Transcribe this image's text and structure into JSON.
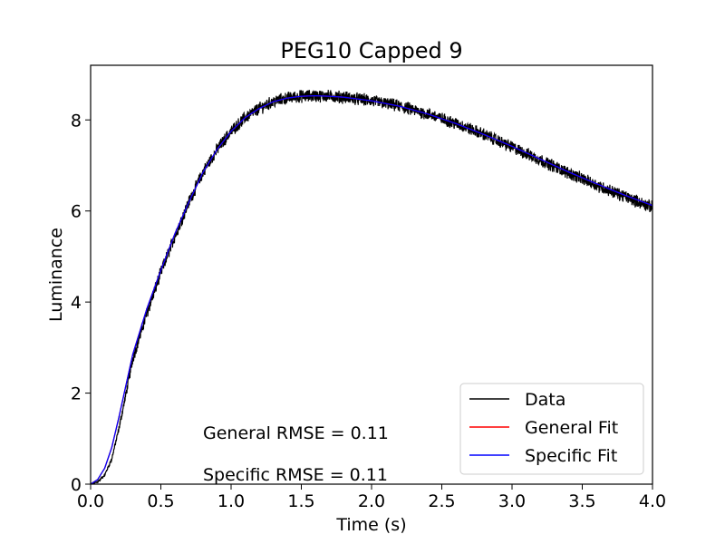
{
  "chart_data": {
    "type": "line",
    "title": "PEG10 Capped 9",
    "xlabel": "Time (s)",
    "ylabel": "Luminance",
    "xlim": [
      0.0,
      4.0
    ],
    "ylim": [
      0.0,
      9.2
    ],
    "xticks": [
      0.0,
      0.5,
      1.0,
      1.5,
      2.0,
      2.5,
      3.0,
      3.5,
      4.0
    ],
    "xtick_labels": [
      "0.0",
      "0.5",
      "1.0",
      "1.5",
      "2.0",
      "2.5",
      "3.0",
      "3.5",
      "4.0"
    ],
    "yticks": [
      0,
      2,
      4,
      6,
      8
    ],
    "ytick_labels": [
      "0",
      "2",
      "4",
      "6",
      "8"
    ],
    "grid": false,
    "legend_position": "bottom-right",
    "series": [
      {
        "name": "Data",
        "color": "#000000",
        "noise_amplitude": 0.12,
        "x": [
          0.0,
          0.05,
          0.1,
          0.15,
          0.2,
          0.25,
          0.3,
          0.4,
          0.5,
          0.6,
          0.7,
          0.8,
          0.9,
          1.0,
          1.1,
          1.2,
          1.3,
          1.4,
          1.5,
          1.6,
          1.7,
          1.8,
          1.9,
          2.0,
          2.2,
          2.4,
          2.6,
          2.8,
          3.0,
          3.2,
          3.4,
          3.6,
          3.8,
          4.0
        ],
        "y": [
          0.0,
          0.05,
          0.2,
          0.55,
          1.2,
          1.95,
          2.75,
          3.75,
          4.65,
          5.45,
          6.2,
          6.85,
          7.35,
          7.75,
          8.05,
          8.25,
          8.4,
          8.48,
          8.52,
          8.53,
          8.52,
          8.5,
          8.46,
          8.42,
          8.3,
          8.13,
          7.92,
          7.68,
          7.4,
          7.12,
          6.84,
          6.57,
          6.32,
          6.08
        ]
      },
      {
        "name": "General Fit",
        "color": "#ff0000",
        "x": [
          0.0,
          0.05,
          0.1,
          0.15,
          0.2,
          0.25,
          0.3,
          0.4,
          0.5,
          0.6,
          0.7,
          0.8,
          0.9,
          1.0,
          1.1,
          1.2,
          1.3,
          1.4,
          1.5,
          1.6,
          1.7,
          1.8,
          1.9,
          2.0,
          2.2,
          2.4,
          2.6,
          2.8,
          3.0,
          3.2,
          3.4,
          3.6,
          3.8,
          4.0
        ],
        "y": [
          0.0,
          0.1,
          0.35,
          0.8,
          1.45,
          2.15,
          2.85,
          3.85,
          4.7,
          5.5,
          6.2,
          6.85,
          7.35,
          7.75,
          8.05,
          8.25,
          8.4,
          8.48,
          8.52,
          8.53,
          8.52,
          8.5,
          8.46,
          8.42,
          8.3,
          8.13,
          7.92,
          7.68,
          7.42,
          7.14,
          6.86,
          6.6,
          6.35,
          6.12
        ]
      },
      {
        "name": "Specific Fit",
        "color": "#0000ff",
        "x": [
          0.0,
          0.05,
          0.1,
          0.15,
          0.2,
          0.25,
          0.3,
          0.4,
          0.5,
          0.6,
          0.7,
          0.8,
          0.9,
          1.0,
          1.1,
          1.2,
          1.3,
          1.4,
          1.5,
          1.6,
          1.7,
          1.8,
          1.9,
          2.0,
          2.2,
          2.4,
          2.6,
          2.8,
          3.0,
          3.2,
          3.4,
          3.6,
          3.8,
          4.0
        ],
        "y": [
          0.0,
          0.1,
          0.35,
          0.8,
          1.45,
          2.15,
          2.85,
          3.85,
          4.7,
          5.5,
          6.2,
          6.85,
          7.35,
          7.75,
          8.05,
          8.25,
          8.4,
          8.48,
          8.52,
          8.53,
          8.52,
          8.5,
          8.46,
          8.42,
          8.3,
          8.13,
          7.92,
          7.68,
          7.42,
          7.14,
          6.86,
          6.6,
          6.35,
          6.12
        ]
      }
    ],
    "annotations": [
      {
        "text": "General RMSE = 0.11",
        "x": 0.8,
        "y": 1.0
      },
      {
        "text": "Specific RMSE = 0.11",
        "x": 0.8,
        "y": 0.08
      }
    ]
  }
}
